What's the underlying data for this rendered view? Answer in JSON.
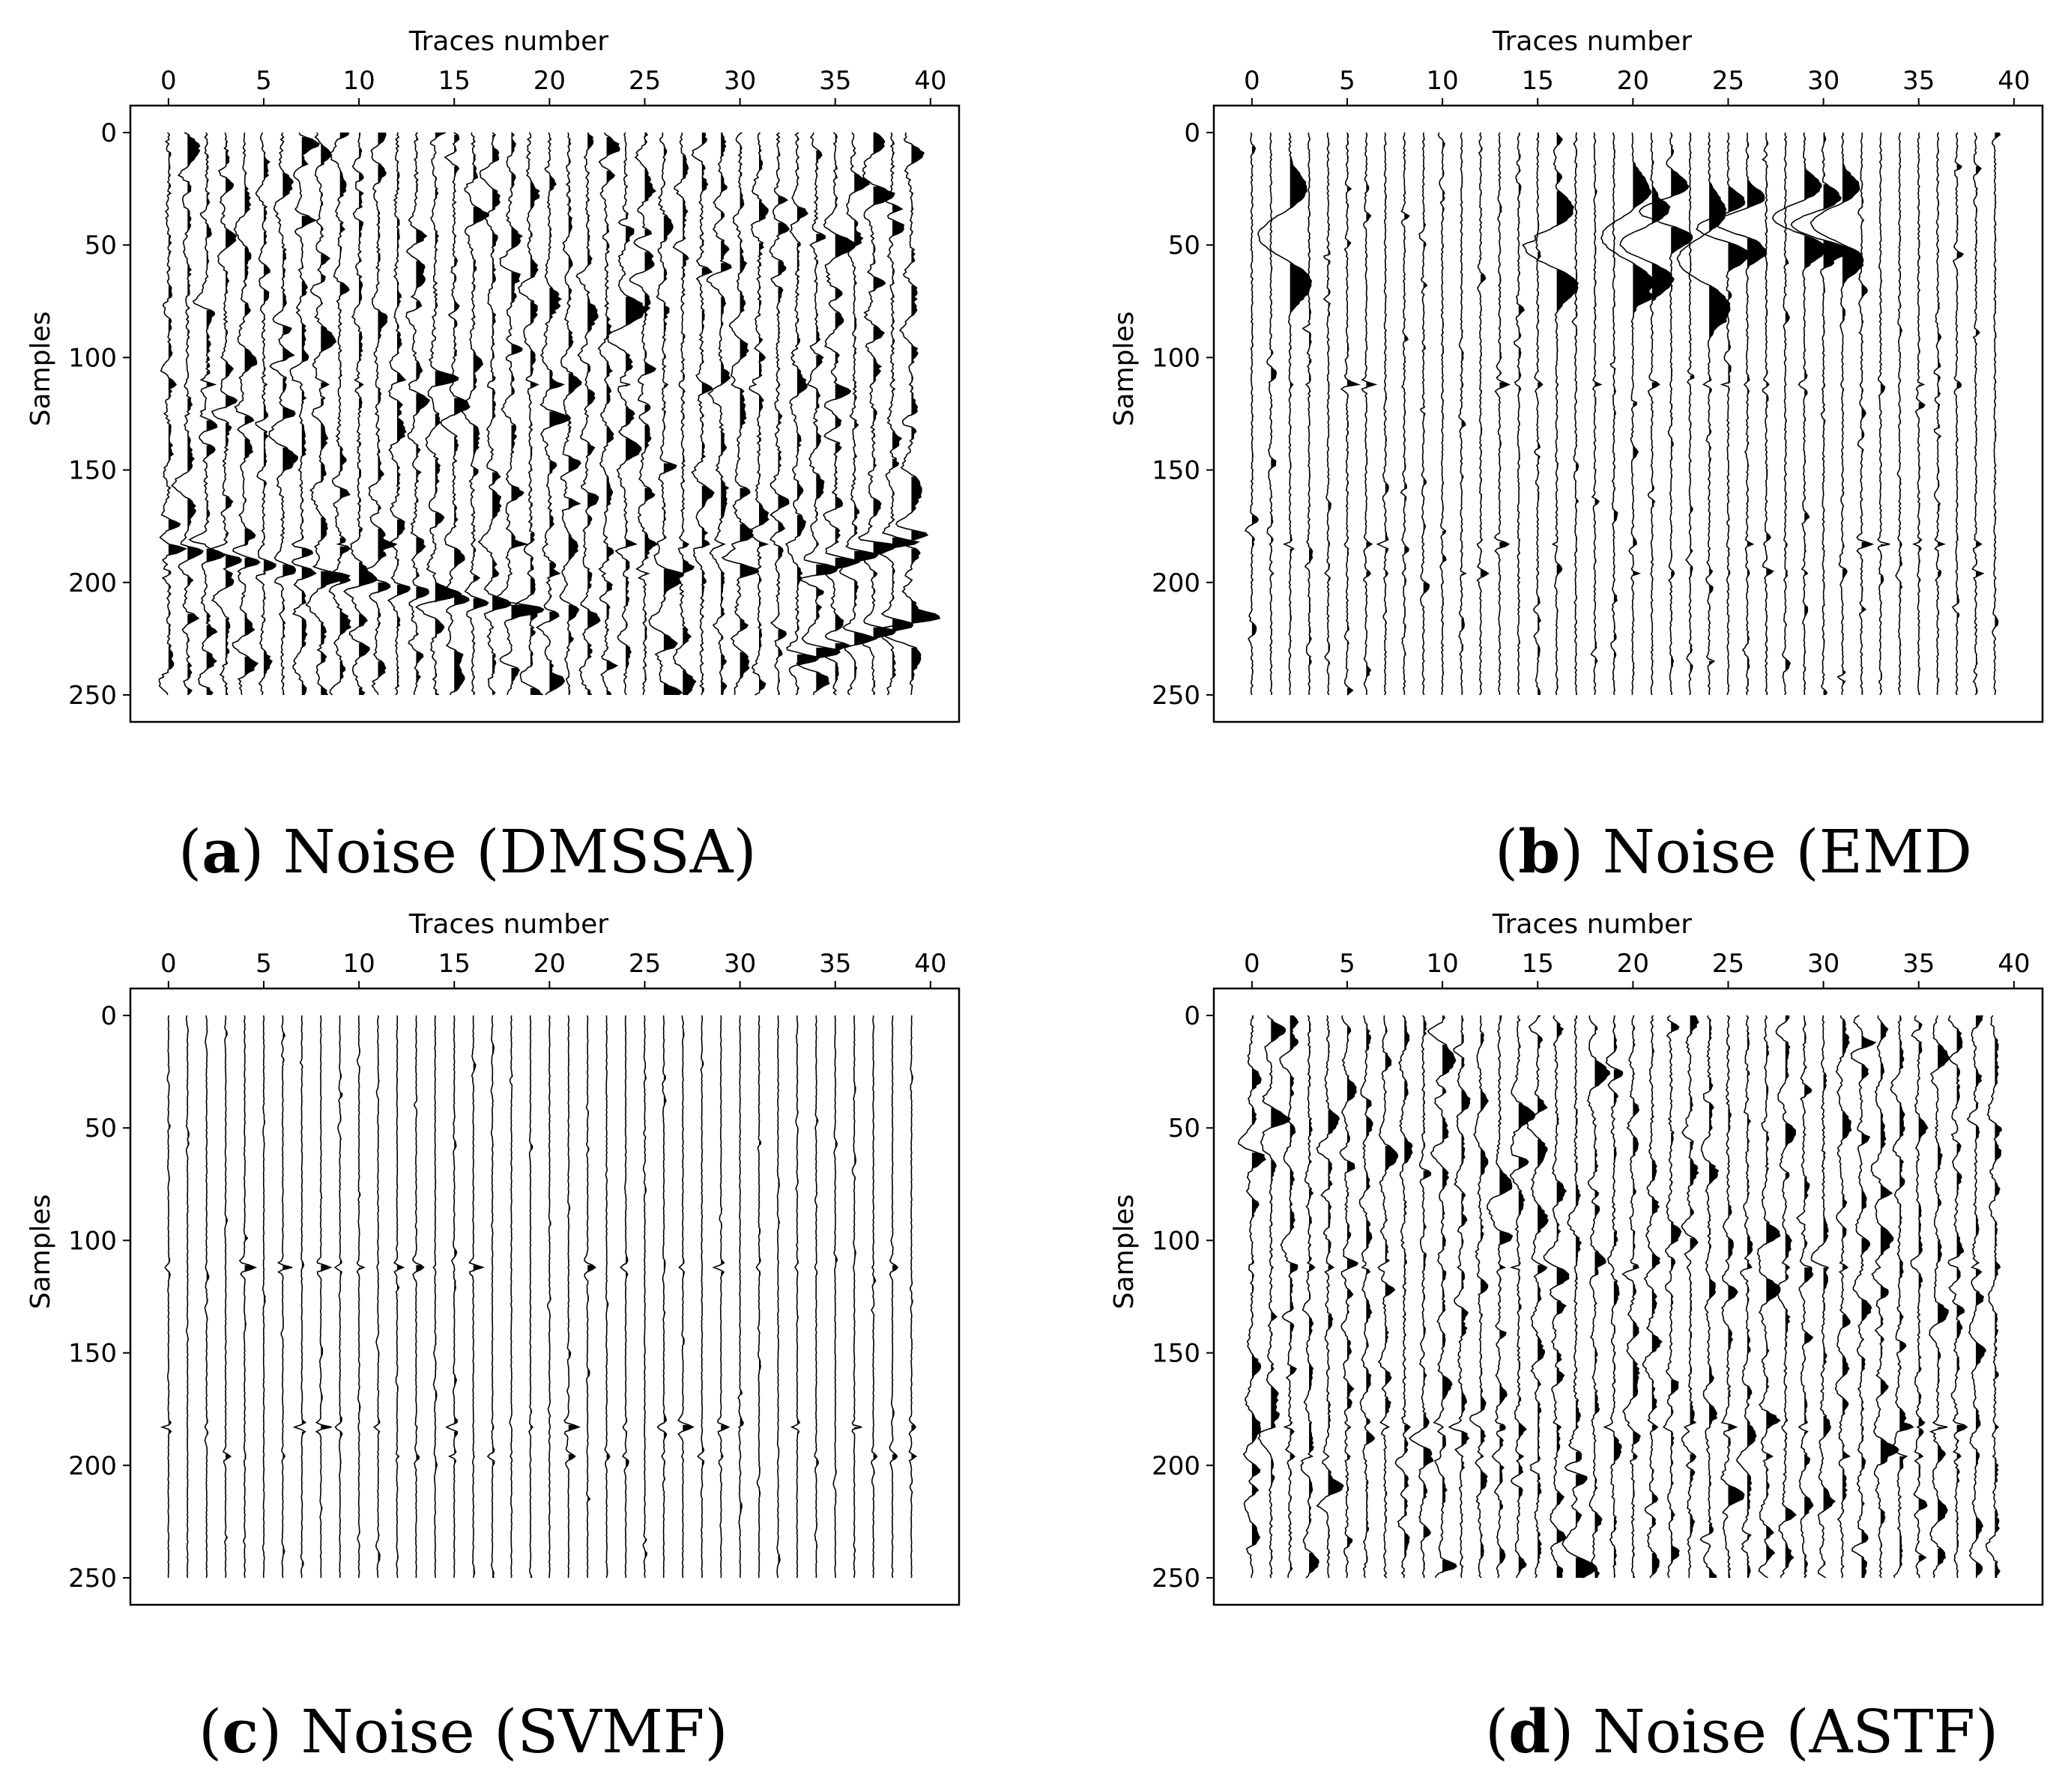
{
  "figure": {
    "panels": [
      {
        "id": "a",
        "caption_letter": "a",
        "caption_text": "Noise (DMSSA)",
        "method": "DMSSA",
        "noise_profile": {
          "amplitude": 1.0,
          "sparse": false,
          "events": [
            [
              185,
              34,
              40,
              1.6
            ],
            [
              225,
              33,
              39,
              1.5
            ],
            [
              200,
              0,
              20,
              1.0
            ]
          ]
        }
      },
      {
        "id": "b",
        "caption_letter": "b",
        "caption_text": "Noise (EMD",
        "method": "EMD",
        "noise_profile": {
          "amplitude": 0.55,
          "sparse": true,
          "strong_traces": [
            2,
            16,
            20,
            21,
            22,
            24,
            25,
            26,
            29,
            30,
            31
          ]
        }
      },
      {
        "id": "c",
        "caption_letter": "c",
        "caption_text": "Noise (SVMF)",
        "method": "SVMF",
        "noise_profile": {
          "amplitude": 0.22,
          "sparse": true,
          "strong_traces": []
        }
      },
      {
        "id": "d",
        "caption_letter": "d",
        "caption_text": "Noise (ASTF)",
        "method": "ASTF",
        "noise_profile": {
          "amplitude": 0.75,
          "sparse": false,
          "events": []
        }
      }
    ]
  },
  "chart_data": [
    {
      "type": "seismic-wiggle",
      "title": "",
      "xlabel": "Traces number",
      "ylabel": "Samples",
      "x_ticks": [
        0,
        5,
        10,
        15,
        20,
        25,
        30,
        35,
        40
      ],
      "y_ticks": [
        0,
        50,
        100,
        150,
        200,
        250
      ],
      "xlim": [
        -2,
        41.5
      ],
      "ylim": [
        262,
        -12
      ],
      "n_traces": 40,
      "n_samples": 251,
      "caption": "(a) Noise (DMSSA)",
      "wiggle_fill": "positive",
      "color": "#000000"
    },
    {
      "type": "seismic-wiggle",
      "title": "",
      "xlabel": "Traces number",
      "ylabel": "Samples",
      "x_ticks": [
        0,
        5,
        10,
        15,
        20,
        25,
        30,
        35,
        40
      ],
      "y_ticks": [
        0,
        50,
        100,
        150,
        200,
        250
      ],
      "xlim": [
        -2,
        41.5
      ],
      "ylim": [
        262,
        -12
      ],
      "n_traces": 40,
      "n_samples": 251,
      "caption": "(b) Noise (EMD",
      "wiggle_fill": "positive",
      "color": "#000000"
    },
    {
      "type": "seismic-wiggle",
      "title": "",
      "xlabel": "Traces number",
      "ylabel": "Samples",
      "x_ticks": [
        0,
        5,
        10,
        15,
        20,
        25,
        30,
        35,
        40
      ],
      "y_ticks": [
        0,
        50,
        100,
        150,
        200,
        250
      ],
      "xlim": [
        -2,
        41.5
      ],
      "ylim": [
        262,
        -12
      ],
      "n_traces": 40,
      "n_samples": 251,
      "caption": "(c) Noise (SVMF)",
      "wiggle_fill": "positive",
      "color": "#000000"
    },
    {
      "type": "seismic-wiggle",
      "title": "",
      "xlabel": "Traces number",
      "ylabel": "Samples",
      "x_ticks": [
        0,
        5,
        10,
        15,
        20,
        25,
        30,
        35,
        40
      ],
      "y_ticks": [
        0,
        50,
        100,
        150,
        200,
        250
      ],
      "xlim": [
        -2,
        41.5
      ],
      "ylim": [
        262,
        -12
      ],
      "n_traces": 40,
      "n_samples": 251,
      "caption": "(d) Noise (ASTF)",
      "wiggle_fill": "positive",
      "color": "#000000"
    }
  ]
}
